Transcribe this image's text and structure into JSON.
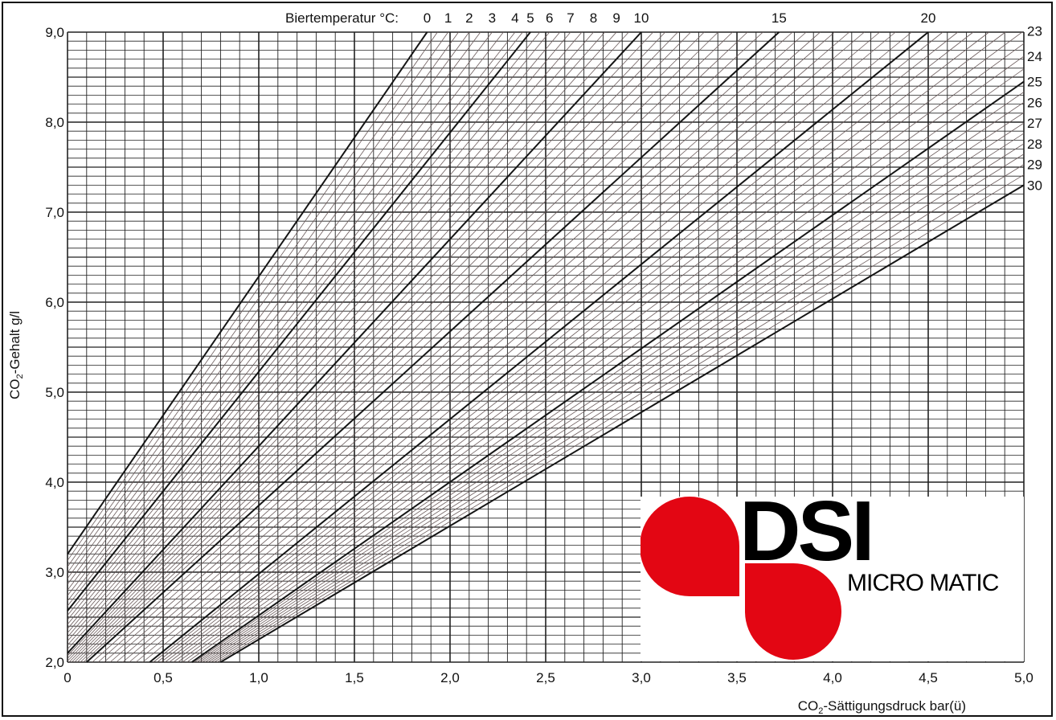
{
  "chart_data": {
    "type": "line",
    "xlabel": "CO2-Sättigungsdruck bar(ü)",
    "xlabel_parts": {
      "main": "CO",
      "sub": "2",
      "rest": "-Sättigungsdruck bar(ü)"
    },
    "ylabel": "CO2-Gehalt g/l",
    "ylabel_parts": {
      "main": "CO",
      "sub": "2",
      "rest": "-Gehalt g/l"
    },
    "temperature_label": "Biertemperatur °C:",
    "xlim": [
      0,
      5.0
    ],
    "ylim": [
      2.0,
      9.0
    ],
    "x_ticks": [
      "0",
      "0,5",
      "1,0",
      "1,5",
      "2,0",
      "2,5",
      "3,0",
      "3,5",
      "4,0",
      "4,5",
      "5,0"
    ],
    "y_ticks": [
      "2,0",
      "3,0",
      "4,0",
      "5,0",
      "6,0",
      "7,0",
      "8,0",
      "9,0"
    ],
    "top_temperature_labels": [
      {
        "label": "0",
        "t": 0
      },
      {
        "label": "1",
        "t": 1
      },
      {
        "label": "2",
        "t": 2
      },
      {
        "label": "3",
        "t": 3
      },
      {
        "label": "4",
        "t": 4
      },
      {
        "label": "5",
        "t": 5
      },
      {
        "label": "6",
        "t": 6
      },
      {
        "label": "7",
        "t": 7
      },
      {
        "label": "8",
        "t": 8
      },
      {
        "label": "9",
        "t": 9
      },
      {
        "label": "10",
        "t": 10
      },
      {
        "label": "15",
        "t": 15
      },
      {
        "label": "20",
        "t": 20
      }
    ],
    "right_temperature_labels": [
      "23",
      "24",
      "25",
      "26",
      "27",
      "28",
      "29",
      "30"
    ],
    "temperature_lines": [
      {
        "t": 0,
        "points": [
          [
            0,
            3.2
          ],
          [
            1.88,
            9.0
          ]
        ]
      },
      {
        "t": 1,
        "points": [
          [
            0,
            3.06
          ],
          [
            1.99,
            9.0
          ]
        ]
      },
      {
        "t": 2,
        "points": [
          [
            0,
            2.93
          ],
          [
            2.1,
            9.0
          ]
        ]
      },
      {
        "t": 3,
        "points": [
          [
            0,
            2.8
          ],
          [
            2.22,
            9.0
          ]
        ]
      },
      {
        "t": 4,
        "points": [
          [
            0,
            2.68
          ],
          [
            2.34,
            9.0
          ]
        ]
      },
      {
        "t": 5,
        "points": [
          [
            0,
            2.57
          ],
          [
            2.42,
            9.0
          ]
        ]
      },
      {
        "t": 6,
        "points": [
          [
            0,
            2.47
          ],
          [
            2.52,
            9.0
          ]
        ]
      },
      {
        "t": 7,
        "points": [
          [
            0,
            2.37
          ],
          [
            2.63,
            9.0
          ]
        ]
      },
      {
        "t": 8,
        "points": [
          [
            0,
            2.28
          ],
          [
            2.75,
            9.0
          ]
        ]
      },
      {
        "t": 9,
        "points": [
          [
            0,
            2.19
          ],
          [
            2.87,
            9.0
          ]
        ]
      },
      {
        "t": 10,
        "points": [
          [
            0,
            2.1
          ],
          [
            3.0,
            9.0
          ]
        ]
      },
      {
        "t": 15,
        "points": [
          [
            0.1,
            2.0
          ],
          [
            3.72,
            9.0
          ]
        ]
      },
      {
        "t": 20,
        "points": [
          [
            0.43,
            2.0
          ],
          [
            4.5,
            9.0
          ]
        ]
      },
      {
        "t": 25,
        "points": [
          [
            0.65,
            2.0
          ],
          [
            5.0,
            8.45
          ]
        ]
      },
      {
        "t": 30,
        "points": [
          [
            0.8,
            2.0
          ],
          [
            5.0,
            7.3
          ]
        ]
      }
    ],
    "grid": true,
    "legend": "none"
  },
  "logo": {
    "brand": "DSI",
    "subtitle": "MICRO MATIC",
    "color": "#e30613"
  }
}
